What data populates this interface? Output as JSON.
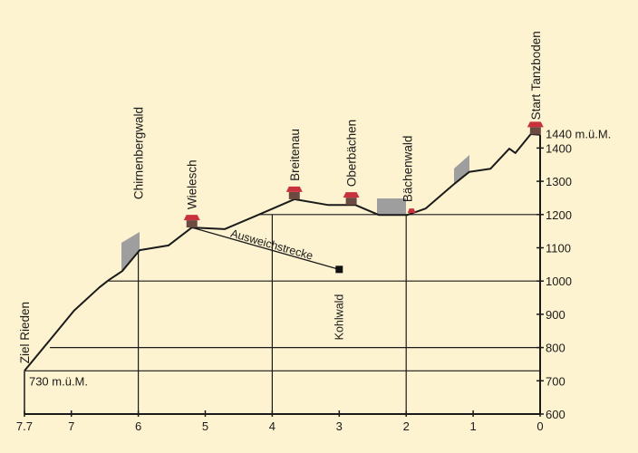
{
  "chart_data": {
    "type": "line",
    "title": "",
    "xlabel": "",
    "ylabel": "",
    "xlim": [
      7.7,
      0
    ],
    "ylim": [
      600,
      1450
    ],
    "x_ticks": [
      "7.7",
      "7",
      "6",
      "5",
      "4",
      "3",
      "2",
      "1",
      "0"
    ],
    "x_tick_values": [
      7.7,
      7,
      6,
      5,
      4,
      3,
      2,
      1,
      0
    ],
    "y_ticks": [
      "600",
      "700",
      "800",
      "900",
      "1000",
      "1100",
      "1200",
      "1300",
      "1400"
    ],
    "y_tick_values": [
      600,
      700,
      800,
      900,
      1000,
      1100,
      1200,
      1300,
      1400
    ],
    "profile": {
      "km": [
        7.7,
        7.32,
        6.96,
        6.58,
        6.44,
        6.24,
        5.98,
        5.55,
        5.2,
        4.71,
        4.21,
        3.67,
        3.17,
        2.76,
        2.41,
        1.98,
        1.71,
        1.3,
        1.06,
        0.74,
        0.46,
        0.37,
        0.14,
        0
      ],
      "elev": [
        730,
        823,
        911,
        981,
        1003,
        1030,
        1093,
        1107,
        1161,
        1156,
        1199,
        1246,
        1229,
        1229,
        1199,
        1199,
        1218,
        1289,
        1328,
        1338,
        1398,
        1385,
        1442,
        1440
      ]
    },
    "gridlines": [
      {
        "elev": 730,
        "from_km": 7.7
      },
      {
        "elev": 800,
        "from_km": 7.32
      },
      {
        "elev": 1000,
        "from_km": 6.44
      },
      {
        "elev": 1200,
        "from_km": 4.21
      }
    ],
    "verticals": [
      {
        "km": 6,
        "top_elev": 1093
      },
      {
        "km": 4,
        "top_elev": 1200
      },
      {
        "km": 2,
        "top_elev": 1200
      }
    ],
    "start_label": "1440 m.ü.M.",
    "end_label": "730 m.ü.M.",
    "detour": {
      "label": "Ausweichstrecke",
      "from": [
        5.2,
        1161
      ],
      "to": [
        3.0,
        1035
      ],
      "end_label": "Kohlwald"
    },
    "stations": [
      {
        "name": "Ziel Rieden",
        "km": 7.7,
        "elev": 730,
        "hut": false
      },
      {
        "name": "Chirnenbergwald",
        "km": 6.0,
        "elev": 1093,
        "hut": false
      },
      {
        "name": "Wielesch",
        "km": 5.2,
        "elev": 1161,
        "hut": true
      },
      {
        "name": "Breitenau",
        "km": 3.67,
        "elev": 1246,
        "hut": true
      },
      {
        "name": "Oberbächen",
        "km": 2.82,
        "elev": 1229,
        "hut": true
      },
      {
        "name": "Bächenwald",
        "km": 1.98,
        "elev": 1199,
        "hut": "small"
      },
      {
        "name": "Start Tanzboden",
        "km": 0.07,
        "elev": 1441,
        "hut": true
      }
    ],
    "colors": {
      "background": "#fef3d0",
      "line": "#1a1a1a",
      "hut_roof": "#c8323c",
      "hut_body": "#6b4a42",
      "forest": "#9e9e9e"
    }
  }
}
